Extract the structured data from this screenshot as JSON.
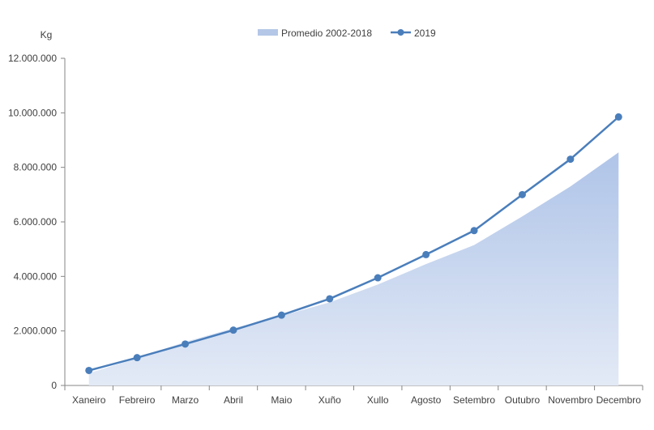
{
  "chart_data": {
    "type": "area",
    "ylabel": "Kg",
    "ylim": [
      0,
      12000000
    ],
    "y_ticks": [
      "0",
      "2.000.000",
      "4.000.000",
      "6.000.000",
      "8.000.000",
      "10.000.000",
      "12.000.000"
    ],
    "y_tick_values": [
      0,
      2000000,
      4000000,
      6000000,
      8000000,
      10000000,
      12000000
    ],
    "categories": [
      "Xaneiro",
      "Febreiro",
      "Marzo",
      "Abril",
      "Maio",
      "Xuño",
      "Xullo",
      "Agosto",
      "Setembro",
      "Outubro",
      "Novembro",
      "Decembro"
    ],
    "series": [
      {
        "name": "Promedio 2002-2018",
        "kind": "area",
        "color": "#B4C7E7",
        "values": [
          450000,
          1000000,
          1600000,
          2100000,
          2550000,
          3050000,
          3700000,
          4450000,
          5150000,
          6200000,
          7300000,
          8550000
        ]
      },
      {
        "name": "2019",
        "kind": "line",
        "color": "#4A7EBB",
        "values": [
          550000,
          1020000,
          1520000,
          2030000,
          2580000,
          3180000,
          3950000,
          4800000,
          5680000,
          7000000,
          8300000,
          9850000
        ]
      }
    ],
    "legend_position": "top-center",
    "grid": false
  }
}
